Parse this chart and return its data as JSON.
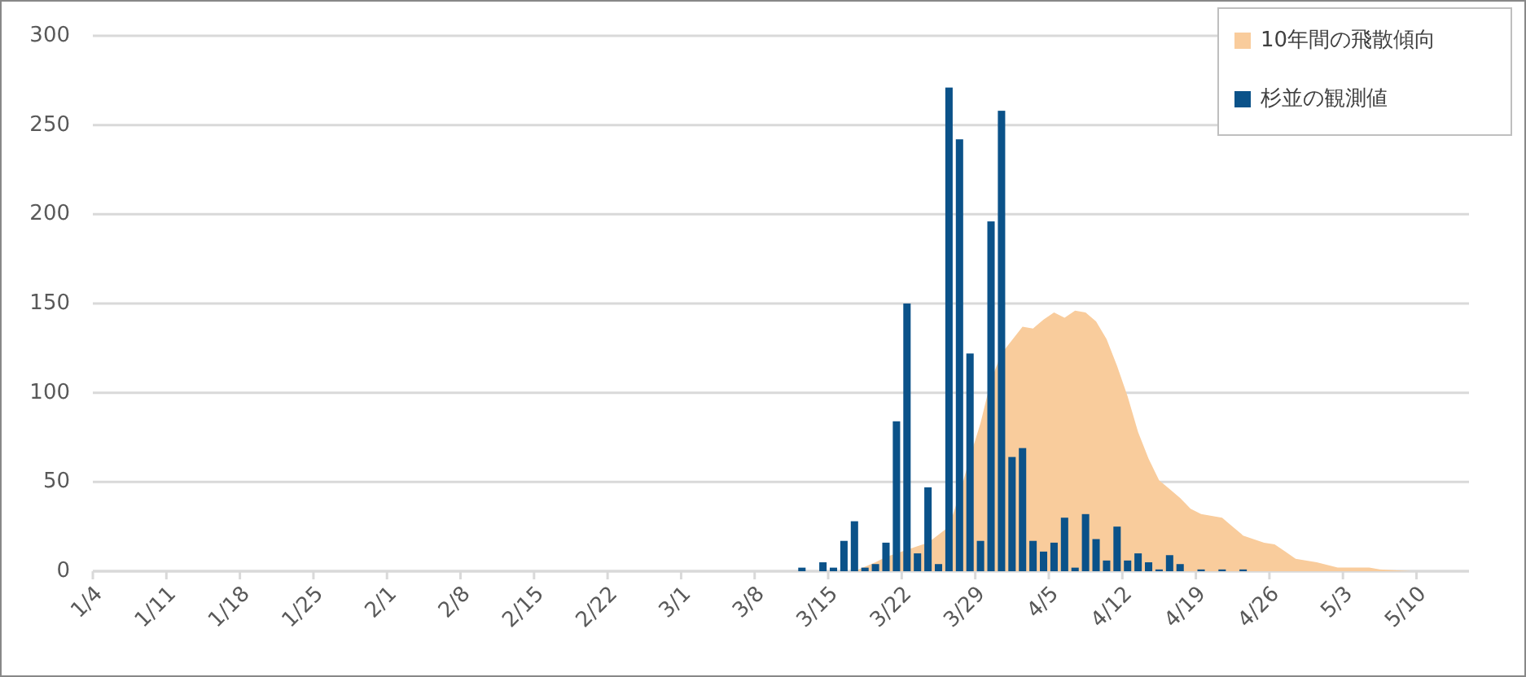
{
  "chart_data": {
    "type": "bar",
    "xlim": [
      "--01-04",
      "--05-15"
    ],
    "xticks": [
      {
        "value": "--01-04",
        "label": "1/4"
      },
      {
        "value": "--01-11",
        "label": "1/11"
      },
      {
        "value": "--01-18",
        "label": "1/18"
      },
      {
        "value": "--01-25",
        "label": "1/25"
      },
      {
        "value": "--02-01",
        "label": "2/1"
      },
      {
        "value": "--02-08",
        "label": "2/8"
      },
      {
        "value": "--02-15",
        "label": "2/15"
      },
      {
        "value": "--02-22",
        "label": "2/22"
      },
      {
        "value": "--03-01",
        "label": "3/1"
      },
      {
        "value": "--03-08",
        "label": "3/8"
      },
      {
        "value": "--03-15",
        "label": "3/15"
      },
      {
        "value": "--03-22",
        "label": "3/22"
      },
      {
        "value": "--03-29",
        "label": "3/29"
      },
      {
        "value": "--04-05",
        "label": "4/5"
      },
      {
        "value": "--04-12",
        "label": "4/12"
      },
      {
        "value": "--04-19",
        "label": "4/19"
      },
      {
        "value": "--04-26",
        "label": "4/26"
      },
      {
        "value": "--05-03",
        "label": "5/3"
      },
      {
        "value": "--05-10",
        "label": "5/10"
      }
    ],
    "ylim": [
      0,
      300
    ],
    "yticks": [
      0,
      50,
      100,
      150,
      200,
      250,
      300
    ],
    "grid": "y",
    "legend": "top right",
    "series": [
      {
        "name": "10年間の飛散傾向",
        "type": "area",
        "color": "#f9cc9c",
        "x": [
          "--03-17",
          "--03-19",
          "--03-20",
          "--03-23",
          "--03-24",
          "--03-26",
          "--03-27",
          "--03-28",
          "--03-29",
          "--03-30",
          "--03-31",
          "--04-02",
          "--04-03",
          "--04-04",
          "--04-05",
          "--04-06",
          "--04-07",
          "--04-08",
          "--04-09",
          "--04-10",
          "--04-11",
          "--04-12",
          "--04-13",
          "--04-14",
          "--04-15",
          "--04-16",
          "--04-17",
          "--04-18",
          "--04-19",
          "--04-21",
          "--04-22",
          "--04-23",
          "--04-25",
          "--04-26",
          "--04-27",
          "--04-28",
          "--04-30",
          "--05-02",
          "--05-05",
          "--05-06",
          "--05-09"
        ],
        "values": [
          0,
          5,
          8,
          14,
          16,
          25,
          43,
          64,
          83,
          107,
          122,
          137,
          136,
          141,
          145,
          142,
          146,
          145,
          140,
          130,
          115,
          98,
          78,
          63,
          51,
          46,
          41,
          35,
          32,
          30,
          25,
          20,
          16,
          15,
          11,
          7,
          5,
          2,
          2,
          1,
          0
        ]
      },
      {
        "name": "杉並の観測値",
        "color": "#0b5289",
        "x": [
          "--03-12",
          "--03-14",
          "--03-15",
          "--03-16",
          "--03-17",
          "--03-18",
          "--03-19",
          "--03-20",
          "--03-21",
          "--03-22",
          "--03-23",
          "--03-24",
          "--03-25",
          "--03-26",
          "--03-27",
          "--03-28",
          "--03-29",
          "--03-30",
          "--03-31",
          "--04-01",
          "--04-02",
          "--04-03",
          "--04-04",
          "--04-05",
          "--04-06",
          "--04-07",
          "--04-08",
          "--04-09",
          "--04-10",
          "--04-11",
          "--04-12",
          "--04-13",
          "--04-14",
          "--04-15",
          "--04-16",
          "--04-17",
          "--04-19",
          "--04-21",
          "--04-23"
        ],
        "values": [
          2,
          5,
          2,
          17,
          28,
          2,
          4,
          16,
          84,
          150,
          10,
          47,
          4,
          271,
          242,
          122,
          17,
          196,
          258,
          64,
          69,
          17,
          11,
          16,
          30,
          2,
          32,
          18,
          6,
          25,
          6,
          10,
          5,
          1,
          9,
          4,
          1,
          1,
          1
        ]
      }
    ]
  }
}
